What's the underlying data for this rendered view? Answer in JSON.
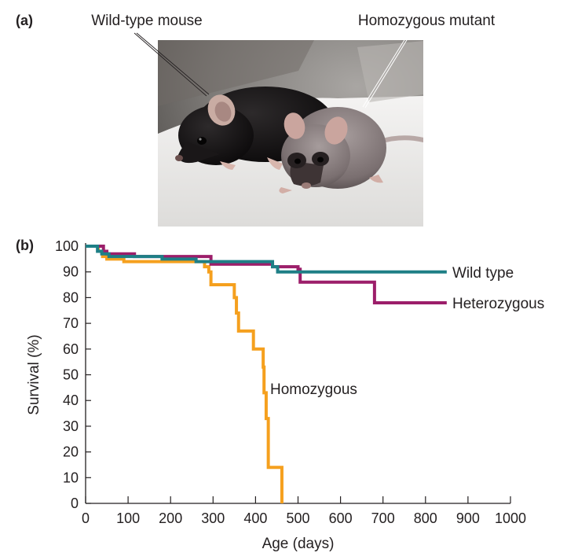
{
  "panel_a": {
    "label": "(a)",
    "callouts": [
      {
        "key": "wild",
        "text": "Wild-type mouse"
      },
      {
        "key": "mutant",
        "text": "Homozygous mutant"
      }
    ]
  },
  "panel_b": {
    "label": "(b)"
  },
  "chart_data": {
    "type": "line",
    "title": "",
    "xlabel": "Age (days)",
    "ylabel": "Survival (%)",
    "xlim": [
      0,
      1000
    ],
    "ylim": [
      0,
      100
    ],
    "xticks": [
      0,
      100,
      200,
      300,
      400,
      500,
      600,
      700,
      800,
      900,
      1000
    ],
    "yticks": [
      0,
      10,
      20,
      30,
      40,
      50,
      60,
      70,
      80,
      90,
      100
    ],
    "grid": false,
    "legend": "direct labels at line ends",
    "step": true,
    "series": [
      {
        "name": "Wild type",
        "color": "#1e7f86",
        "points": [
          [
            0,
            100
          ],
          [
            20,
            100
          ],
          [
            28,
            98
          ],
          [
            38,
            97
          ],
          [
            55,
            96
          ],
          [
            180,
            95
          ],
          [
            260,
            94
          ],
          [
            430,
            94
          ],
          [
            440,
            92
          ],
          [
            452,
            90
          ],
          [
            850,
            90
          ]
        ]
      },
      {
        "name": "Heterozygous",
        "color": "#9c1e6a",
        "points": [
          [
            0,
            100
          ],
          [
            35,
            100
          ],
          [
            42,
            98
          ],
          [
            50,
            97
          ],
          [
            110,
            97
          ],
          [
            115,
            96
          ],
          [
            290,
            96
          ],
          [
            295,
            93
          ],
          [
            430,
            93
          ],
          [
            440,
            92
          ],
          [
            500,
            91
          ],
          [
            505,
            86
          ],
          [
            675,
            86
          ],
          [
            680,
            78
          ],
          [
            850,
            78
          ]
        ]
      },
      {
        "name": "Homozygous",
        "color": "#f5a01e",
        "points": [
          [
            0,
            100
          ],
          [
            20,
            100
          ],
          [
            30,
            98
          ],
          [
            40,
            96
          ],
          [
            50,
            95
          ],
          [
            90,
            94
          ],
          [
            270,
            94
          ],
          [
            280,
            92
          ],
          [
            290,
            90
          ],
          [
            295,
            85
          ],
          [
            345,
            85
          ],
          [
            350,
            80
          ],
          [
            355,
            74
          ],
          [
            360,
            67
          ],
          [
            390,
            67
          ],
          [
            395,
            60
          ],
          [
            415,
            60
          ],
          [
            418,
            53
          ],
          [
            420,
            43
          ],
          [
            425,
            33
          ],
          [
            430,
            14
          ],
          [
            460,
            14
          ],
          [
            462,
            0
          ]
        ]
      }
    ]
  },
  "colors": {
    "axis": "#231f20",
    "photo_background": "#7e7b78",
    "white_surface": "#ecebe9"
  },
  "icons": {
    "photo": "mouse-photo-icon"
  }
}
